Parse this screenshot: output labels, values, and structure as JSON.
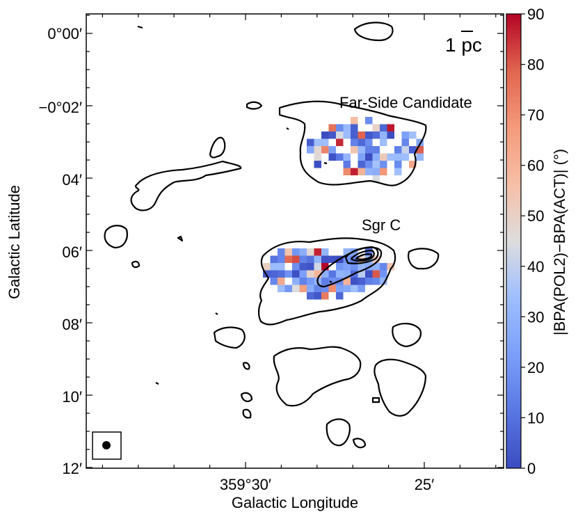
{
  "chart_data": {
    "type": "heatmap",
    "xlabel": "Galactic Longitude",
    "ylabel": "Galactic Latitude",
    "x_ticks": [
      "359°30′",
      "25′"
    ],
    "y_ticks": [
      "0°00′",
      "−0°02′",
      "04′",
      "06′",
      "08′",
      "10′",
      "12′"
    ],
    "colorbar": {
      "label": "|BPA(POL2)−BPA(ACT)| (°)",
      "range": [
        0,
        90
      ],
      "ticks": [
        "0",
        "10",
        "20",
        "30",
        "40",
        "50",
        "60",
        "70",
        "80",
        "90"
      ],
      "colormap": "coolwarm"
    },
    "annotations": {
      "scale_bar": "1 pc",
      "far_side": "Far-Side Candidate",
      "sgr_c": "Sgr C"
    },
    "colors": {
      "far_side": "#1f1fff",
      "sgr_c": "#c000c0",
      "low": "#3b4cc0",
      "high": "#b40426"
    }
  }
}
